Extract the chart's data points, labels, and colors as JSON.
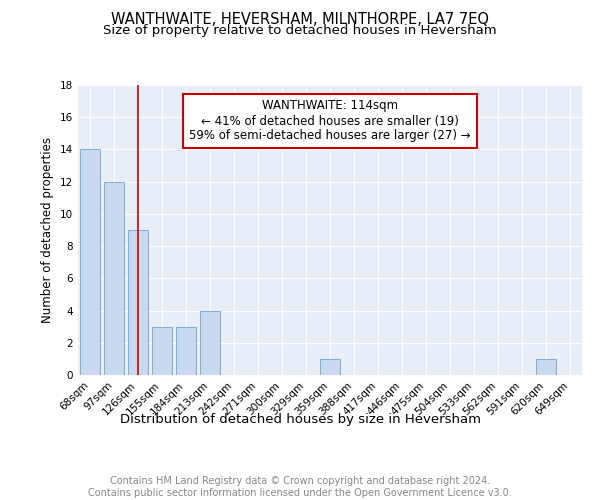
{
  "title": "WANTHWAITE, HEVERSHAM, MILNTHORPE, LA7 7EQ",
  "subtitle": "Size of property relative to detached houses in Heversham",
  "xlabel": "Distribution of detached houses by size in Heversham",
  "ylabel": "Number of detached properties",
  "categories": [
    "68sqm",
    "97sqm",
    "126sqm",
    "155sqm",
    "184sqm",
    "213sqm",
    "242sqm",
    "271sqm",
    "300sqm",
    "329sqm",
    "359sqm",
    "388sqm",
    "417sqm",
    "446sqm",
    "475sqm",
    "504sqm",
    "533sqm",
    "562sqm",
    "591sqm",
    "620sqm",
    "649sqm"
  ],
  "values": [
    14,
    12,
    9,
    3,
    3,
    4,
    0,
    0,
    0,
    0,
    1,
    0,
    0,
    0,
    0,
    0,
    0,
    0,
    0,
    1,
    0
  ],
  "bar_color": "#c9d9f0",
  "bar_edge_color": "#7bafd4",
  "vline_x": 2.0,
  "annotation_text_line1": "WANTHWAITE: 114sqm",
  "annotation_text_line2": "← 41% of detached houses are smaller (19)",
  "annotation_text_line3": "59% of semi-detached houses are larger (27) →",
  "annotation_box_facecolor": "#ffffff",
  "annotation_box_edgecolor": "#cc0000",
  "vline_color": "#cc0000",
  "ylim": [
    0,
    18
  ],
  "yticks": [
    0,
    2,
    4,
    6,
    8,
    10,
    12,
    14,
    16,
    18
  ],
  "plot_bg_color": "#e8eef8",
  "grid_color": "#ffffff",
  "footer_line1": "Contains HM Land Registry data © Crown copyright and database right 2024.",
  "footer_line2": "Contains public sector information licensed under the Open Government Licence v3.0.",
  "title_fontsize": 10.5,
  "subtitle_fontsize": 9.5,
  "xlabel_fontsize": 9.5,
  "ylabel_fontsize": 8.5,
  "tick_fontsize": 7.5,
  "footer_fontsize": 7,
  "annotation_fontsize": 8.5
}
